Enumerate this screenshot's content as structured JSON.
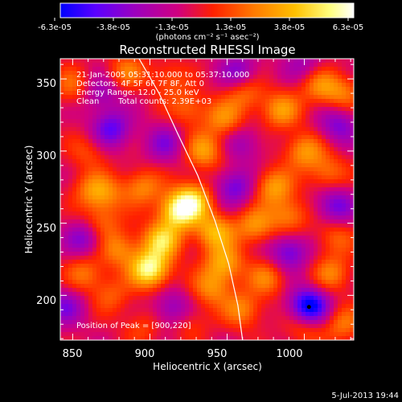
{
  "colorbar": {
    "tick_labels": [
      "-6.3e-05",
      "-3.8e-05",
      "-1.3e-05",
      "1.3e-05",
      "3.8e-05",
      "6.3e-05"
    ],
    "units": "(photons cm⁻² s⁻¹ asec⁻²)",
    "min": -6.3e-05,
    "max": 6.3e-05,
    "colormap": [
      "#0000ff",
      "#5a00ff",
      "#9a00c0",
      "#d00080",
      "#ff2000",
      "#ff7a00",
      "#ffc000",
      "#ffff80",
      "#ffffff"
    ]
  },
  "annotations": {
    "line1": "21-Jan-2005 05:31:10.000 to 05:37:10.000",
    "line2": "Detectors: 4F 5F 6F 7F 8F, Att 0",
    "line3": "Energy Range: 12.0 - 25.0 keV",
    "line4a": "Clean",
    "line4b": "Total counts: 2.39E+03",
    "peak": "Position of Peak = [900,220]"
  },
  "timestamp": "5-Jul-2013 19:44",
  "chart_data": {
    "type": "heatmap",
    "title": "Reconstructed RHESSI Image",
    "xlabel": "Heliocentric X (arcsec)",
    "ylabel": "Heliocentric Y (arcsec)",
    "xlim": [
      842,
      1032
    ],
    "ylim": [
      169,
      364
    ],
    "xticks": [
      850,
      900,
      950,
      1000
    ],
    "yticks": [
      200,
      250,
      300,
      350
    ],
    "xtick_labels": [
      "850",
      "900",
      "950",
      "1000"
    ],
    "ytick_labels": [
      "200",
      "250",
      "300",
      "350"
    ],
    "peak": [
      900,
      220
    ],
    "limb_curve": {
      "x": [
        893,
        906,
        918,
        931,
        942,
        951,
        957,
        960
      ],
      "y": [
        364,
        340,
        312,
        283,
        252,
        222,
        193,
        169
      ]
    },
    "blobs": [
      {
        "x": 900,
        "y": 218,
        "amp": 6.3e-05
      },
      {
        "x": 908,
        "y": 238,
        "amp": 4.8e-05
      },
      {
        "x": 918,
        "y": 258,
        "amp": 5.4e-05
      },
      {
        "x": 928,
        "y": 266,
        "amp": 4.6e-05
      },
      {
        "x": 942,
        "y": 244,
        "amp": 4.2e-05
      },
      {
        "x": 948,
        "y": 222,
        "amp": 3.8e-05
      },
      {
        "x": 940,
        "y": 205,
        "amp": 3e-05
      },
      {
        "x": 880,
        "y": 232,
        "amp": 3e-05
      },
      {
        "x": 868,
        "y": 250,
        "amp": 2.6e-05
      },
      {
        "x": 862,
        "y": 273,
        "amp": 2.4e-05
      },
      {
        "x": 858,
        "y": 215,
        "amp": 2.6e-05
      },
      {
        "x": 875,
        "y": 200,
        "amp": 2e-05
      },
      {
        "x": 872,
        "y": 270,
        "amp": 2.2e-05
      },
      {
        "x": 895,
        "y": 275,
        "amp": 3e-05
      },
      {
        "x": 935,
        "y": 300,
        "amp": 3.6e-05
      },
      {
        "x": 948,
        "y": 322,
        "amp": 3e-05
      },
      {
        "x": 962,
        "y": 340,
        "amp": 2.6e-05
      },
      {
        "x": 985,
        "y": 328,
        "amp": 3.4e-05
      },
      {
        "x": 1010,
        "y": 345,
        "amp": 3e-05
      },
      {
        "x": 1025,
        "y": 340,
        "amp": 2.4e-05
      },
      {
        "x": 1000,
        "y": 300,
        "amp": 3.4e-05
      },
      {
        "x": 1015,
        "y": 285,
        "amp": 2.6e-05
      },
      {
        "x": 980,
        "y": 275,
        "amp": 3.6e-05
      },
      {
        "x": 990,
        "y": 255,
        "amp": 3e-05
      },
      {
        "x": 968,
        "y": 248,
        "amp": 3.2e-05
      },
      {
        "x": 976,
        "y": 212,
        "amp": 2.8e-05
      },
      {
        "x": 960,
        "y": 190,
        "amp": 3e-05
      },
      {
        "x": 1018,
        "y": 215,
        "amp": 2.8e-05
      },
      {
        "x": 1020,
        "y": 240,
        "amp": 2.2e-05
      },
      {
        "x": 1000,
        "y": 178,
        "amp": 2.2e-05
      },
      {
        "x": 1025,
        "y": 180,
        "amp": 2.6e-05
      },
      {
        "x": 850,
        "y": 345,
        "amp": 2.4e-05
      },
      {
        "x": 885,
        "y": 355,
        "amp": 2.6e-05
      },
      {
        "x": 912,
        "y": 350,
        "amp": 2e-05
      },
      {
        "x": 925,
        "y": 330,
        "amp": 2.4e-05
      },
      {
        "x": 860,
        "y": 300,
        "amp": 1.8e-05
      },
      {
        "x": 895,
        "y": 178,
        "amp": 1.6e-05
      },
      {
        "x": 925,
        "y": 182,
        "amp": 1.8e-05
      },
      {
        "x": 1003,
        "y": 192,
        "amp": -6.3e-05
      },
      {
        "x": 858,
        "y": 240,
        "amp": -3.2e-05
      },
      {
        "x": 875,
        "y": 315,
        "amp": -3.8e-05
      },
      {
        "x": 955,
        "y": 275,
        "amp": -3.4e-05
      },
      {
        "x": 990,
        "y": 230,
        "amp": -3.6e-05
      },
      {
        "x": 1020,
        "y": 262,
        "amp": -3.4e-05
      },
      {
        "x": 1022,
        "y": 318,
        "amp": -3e-05
      },
      {
        "x": 958,
        "y": 355,
        "amp": -2.8e-05
      },
      {
        "x": 915,
        "y": 190,
        "amp": -3e-05
      },
      {
        "x": 845,
        "y": 192,
        "amp": -2.8e-05
      },
      {
        "x": 910,
        "y": 305,
        "amp": -2.6e-05
      },
      {
        "x": 868,
        "y": 340,
        "amp": -2.4e-05
      },
      {
        "x": 1000,
        "y": 360,
        "amp": -2e-05
      },
      {
        "x": 960,
        "y": 305,
        "amp": -2e-05
      }
    ],
    "grid": false
  }
}
